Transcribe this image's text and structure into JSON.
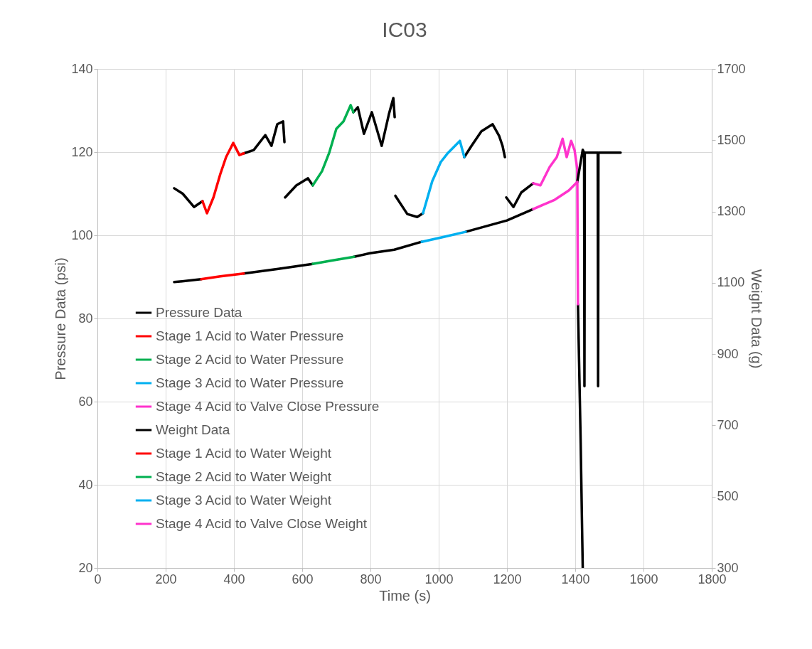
{
  "chart_data": {
    "type": "line",
    "title": "IC03",
    "xlabel": "Time (s)",
    "ylabel": "Pressure Data (psi)",
    "y2label": "Weight Data (g)",
    "xlim": [
      0,
      1800
    ],
    "xticks": [
      0,
      200,
      400,
      600,
      800,
      1000,
      1200,
      1400,
      1600,
      1800
    ],
    "ylim": [
      20,
      140
    ],
    "yticks": [
      20,
      40,
      60,
      80,
      100,
      120,
      140
    ],
    "y2lim": [
      300,
      1700
    ],
    "y2ticks": [
      300,
      500,
      700,
      900,
      1100,
      1300,
      1500,
      1700
    ],
    "grid": true,
    "legend": "bottom left",
    "marker": "none",
    "line_style": "solid",
    "series": [
      {
        "name": "Pressure Data",
        "color": "#000000",
        "x": [
          225,
          250,
          283,
          308,
          370,
          429,
          458,
          492,
          510,
          527,
          544,
          548,
          549,
          550,
          583,
          617,
          631,
          690,
          750,
          763,
          781,
          804,
          833,
          854,
          867,
          871,
          872,
          873,
          908,
          937,
          954,
          1010,
          1075,
          1096,
          1125,
          1158,
          1177,
          1187,
          1194,
          1196,
          1198,
          1219,
          1242,
          1277,
          1340,
          1408,
          1416,
          1422
        ],
        "values": [
          111.3,
          110,
          106.8,
          108.2,
          null,
          119.7,
          120.5,
          124.1,
          121.5,
          126.7,
          127.4,
          122.4,
          null,
          109.1,
          112,
          113.7,
          112,
          null,
          129.6,
          130.8,
          124.4,
          129.6,
          121.5,
          129.1,
          133,
          128.4,
          null,
          109.5,
          105.1,
          104.4,
          105.3,
          null,
          118.8,
          121.5,
          125,
          126.7,
          123.9,
          121.5,
          118.8,
          null,
          109.1,
          106.8,
          110.3,
          112.5,
          null,
          83.4,
          50,
          20
        ]
      },
      {
        "name": "Stage 1 Acid to Water Pressure",
        "color": "#ff0000",
        "x": [
          308,
          321,
          340,
          360,
          377,
          398,
          416,
          429
        ],
        "values": [
          108.2,
          105.3,
          109.1,
          114.7,
          118.8,
          122.2,
          119.3,
          119.7
        ]
      },
      {
        "name": "Stage 2 Acid to Water Pressure",
        "color": "#00b050",
        "x": [
          631,
          658,
          679,
          700,
          721,
          742,
          750
        ],
        "values": [
          112,
          115.4,
          119.8,
          125.6,
          127.4,
          131.3,
          129.6
        ]
      },
      {
        "name": "Stage 3 Acid to Water Pressure",
        "color": "#00b0f0",
        "x": [
          954,
          981,
          1006,
          1027,
          1062,
          1075
        ],
        "values": [
          105.3,
          113,
          117.6,
          119.8,
          122.7,
          118.8
        ]
      },
      {
        "name": "Stage 4 Acid to Valve Close Pressure",
        "color": "#ff33cc",
        "x": [
          1277,
          1298,
          1325,
          1346,
          1363,
          1375,
          1388,
          1398,
          1406,
          1408
        ],
        "values": [
          112.5,
          112,
          116.4,
          118.8,
          123.2,
          118.8,
          122.7,
          120.5,
          115.9,
          83.4
        ]
      },
      {
        "name": "Weight Data",
        "color": "#000000",
        "axis": "y2",
        "x": [
          225,
          304,
          360,
          429,
          530,
          631,
          690,
          752,
          798,
          870,
          950,
          1015,
          1079,
          1200,
          1277,
          1340,
          1406,
          1422,
          1426,
          1427,
          1428,
          1466,
          1467,
          1468,
          1533
        ],
        "values": [
          1102,
          1110,
          null,
          1126,
          1139,
          1153,
          null,
          1173,
          1183,
          1193,
          1215,
          null,
          1243,
          1275,
          1307,
          null,
          1383,
          1473,
          1465,
          810,
          1465,
          1465,
          810,
          1465,
          1465
        ]
      },
      {
        "name": "Stage 1 Acid to Water Weight",
        "color": "#ff0000",
        "axis": "y2",
        "x": [
          304,
          360,
          429
        ],
        "values": [
          1110,
          1118,
          1126
        ]
      },
      {
        "name": "Stage 2 Acid to Water Weight",
        "color": "#00b050",
        "axis": "y2",
        "x": [
          631,
          690,
          752
        ],
        "values": [
          1153,
          1163,
          1173
        ]
      },
      {
        "name": "Stage 3 Acid to Water Weight",
        "color": "#00b0f0",
        "axis": "y2",
        "x": [
          950,
          1015,
          1079
        ],
        "values": [
          1215,
          1229,
          1243
        ]
      },
      {
        "name": "Stage 4 Acid to Valve Close Weight",
        "color": "#ff33cc",
        "axis": "y2",
        "x": [
          1277,
          1340,
          1381,
          1406
        ],
        "values": [
          1307,
          1333,
          1359,
          1383
        ]
      }
    ]
  }
}
